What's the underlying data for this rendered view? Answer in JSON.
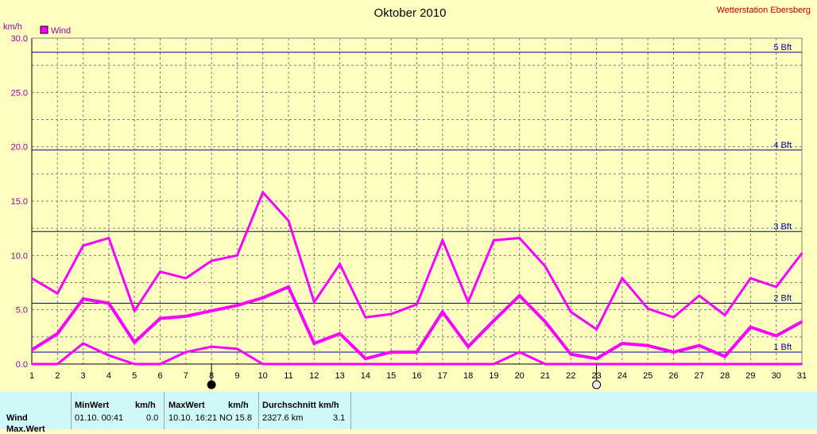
{
  "chart_data": {
    "type": "line",
    "title": "Oktober 2010",
    "station": "Wetterstation Ebersberg",
    "ylabel": "km/h",
    "ylim": [
      0,
      30
    ],
    "yticks": [
      "0.0",
      "5.0",
      "10.0",
      "15.0",
      "20.0",
      "25.0",
      "30.0"
    ],
    "x": [
      1,
      2,
      3,
      4,
      5,
      6,
      7,
      8,
      9,
      10,
      11,
      12,
      13,
      14,
      15,
      16,
      17,
      18,
      19,
      20,
      21,
      22,
      23,
      24,
      25,
      26,
      27,
      28,
      29,
      30,
      31
    ],
    "xlim": [
      1,
      31
    ],
    "grid": true,
    "legend": "top-left",
    "legend_label": "Wind",
    "color": "#ff00ff",
    "series": [
      {
        "role": "max",
        "values": [
          7.9,
          6.5,
          10.9,
          11.6,
          4.9,
          8.5,
          7.9,
          9.5,
          10.0,
          15.8,
          13.2,
          5.7,
          9.2,
          4.3,
          4.6,
          5.5,
          11.4,
          5.7,
          11.4,
          11.6,
          9.0,
          4.8,
          3.2,
          7.9,
          5.1,
          4.3,
          6.3,
          4.5,
          7.9,
          7.1,
          10.2
        ]
      },
      {
        "role": "average",
        "values": [
          1.3,
          2.8,
          6.0,
          5.6,
          2.0,
          4.2,
          4.4,
          4.9,
          5.4,
          6.1,
          7.1,
          1.9,
          2.8,
          0.5,
          1.1,
          1.1,
          4.8,
          1.6,
          4.0,
          6.3,
          3.9,
          0.9,
          0.5,
          1.9,
          1.7,
          1.1,
          1.7,
          0.7,
          3.4,
          2.6,
          3.9
        ]
      },
      {
        "role": "min",
        "values": [
          0.0,
          0.0,
          1.9,
          0.8,
          0.0,
          0.0,
          1.1,
          1.6,
          1.4,
          0.0,
          0.0,
          0.0,
          0.0,
          0.0,
          0.0,
          0.0,
          0.0,
          0.0,
          0.0,
          1.1,
          0.0,
          0.0,
          0.0,
          0.0,
          0.0,
          0.0,
          0.0,
          0.0,
          0.0,
          0.0,
          0.0
        ]
      }
    ],
    "beaufort": [
      {
        "label": "1 Bft",
        "value": 1.1
      },
      {
        "label": "2 Bft",
        "value": 5.6
      },
      {
        "label": "3 Bft",
        "value": 12.2
      },
      {
        "label": "4 Bft",
        "value": 19.7
      },
      {
        "label": "5 Bft",
        "value": 28.7
      }
    ],
    "moon_phases": [
      {
        "day": 8,
        "phase": "new-moon"
      },
      {
        "day": 23,
        "phase": "full-moon"
      }
    ]
  },
  "stats": {
    "headers": {
      "min": "MinWert",
      "min_unit": "km/h",
      "max": "MaxWert",
      "max_unit": "km/h",
      "avg": "Durchschnitt km/h"
    },
    "row_label": "Wind",
    "min_time": "01.10.  00:41",
    "min_value": "0.0",
    "max_time": "10.10.  16:21",
    "max_value": "NO 15.8",
    "distance": "2327.6 km",
    "avg_value": "3.1",
    "next_row_label": "Max.Wert"
  }
}
